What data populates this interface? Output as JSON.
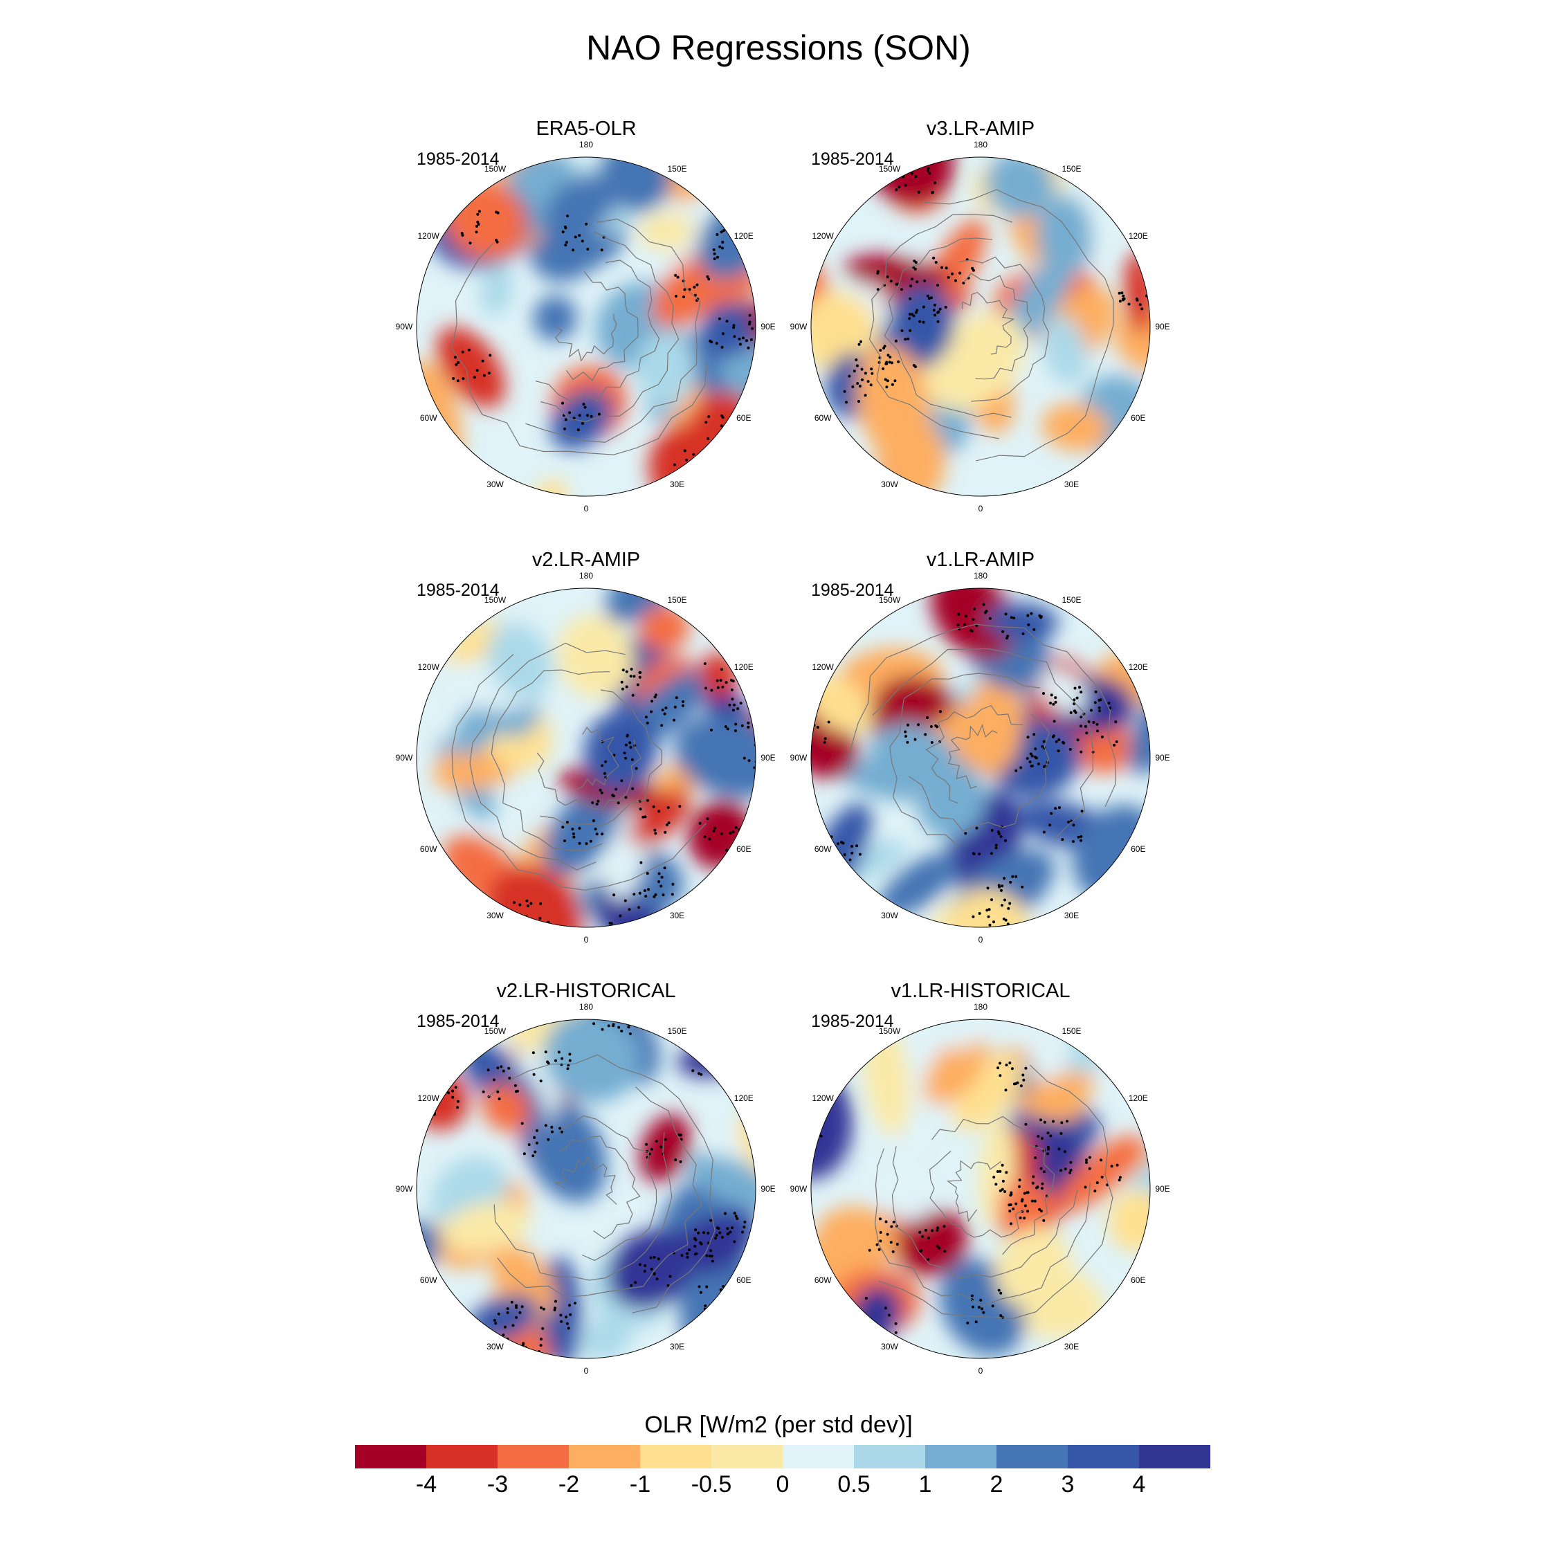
{
  "title": "NAO Regressions (SON)",
  "colorbar": {
    "label": "OLR [W/m2 (per std dev)]",
    "ticks": [
      "-4",
      "-3",
      "-2",
      "-1",
      "-0.5",
      "0",
      "0.5",
      "1",
      "2",
      "3",
      "4"
    ],
    "colors": [
      "#a50026",
      "#d73027",
      "#f46d43",
      "#fdae61",
      "#fee090",
      "#fae9a7",
      "#e0f3f8",
      "#abd9e9",
      "#74add1",
      "#4575b4",
      "#3657a8",
      "#313695"
    ]
  },
  "lon_labels": [
    "180",
    "150E",
    "120E",
    "90E",
    "60E",
    "30E",
    "0",
    "30W",
    "60W",
    "90W",
    "120W",
    "150W"
  ],
  "panels": [
    {
      "title": "ERA5-OLR",
      "period": "1985-2014"
    },
    {
      "title": "v3.LR-AMIP",
      "period": "1985-2014"
    },
    {
      "title": "v2.LR-AMIP",
      "period": "1985-2014"
    },
    {
      "title": "v1.LR-AMIP",
      "period": "1985-2014"
    },
    {
      "title": "v2.LR-HISTORICAL",
      "period": "1985-2014"
    },
    {
      "title": "v1.LR-HISTORICAL",
      "period": "1985-2014"
    }
  ],
  "chart_data": {
    "type": "heatmap",
    "projection": "north polar stereographic",
    "variable": "OLR regression onto NAO index",
    "units": "W/m2 (per std dev)",
    "levels": [
      -4,
      -3,
      -2,
      -1,
      -0.5,
      0,
      0.5,
      1,
      2,
      3,
      4
    ],
    "stippling": "significant regions marked with black dots",
    "panels": [
      "ERA5-OLR",
      "v3.LR-AMIP",
      "v2.LR-AMIP",
      "v1.LR-AMIP",
      "v2.LR-HISTORICAL",
      "v1.LR-HISTORICAL"
    ]
  }
}
